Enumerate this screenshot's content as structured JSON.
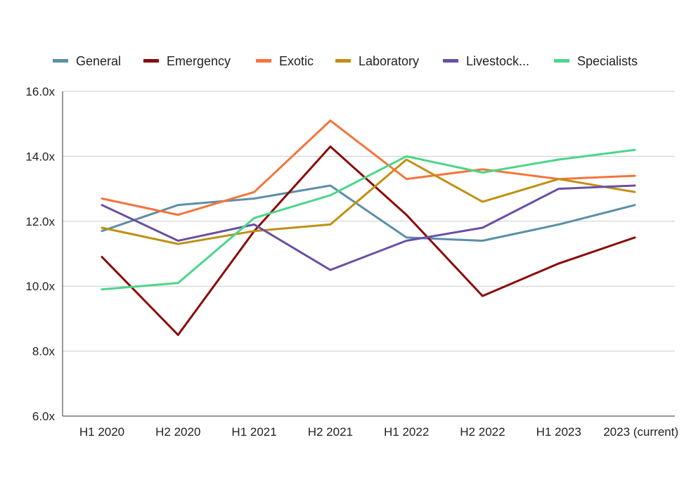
{
  "chart_data": {
    "type": "line",
    "title": "",
    "xlabel": "",
    "ylabel": "",
    "categories": [
      "H1 2020",
      "H2 2020",
      "H1 2021",
      "H2 2021",
      "H1 2022",
      "H2 2022",
      "H1 2023",
      "2023 (current)"
    ],
    "ylim": [
      6.0,
      16.0
    ],
    "yticks": [
      6.0,
      8.0,
      10.0,
      12.0,
      14.0,
      16.0
    ],
    "y_tick_suffix": "x",
    "grid": true,
    "legend_position": "top",
    "series": [
      {
        "name": "General",
        "color": "#5B8FA8",
        "values": [
          11.7,
          12.5,
          12.7,
          13.1,
          11.5,
          11.4,
          11.9,
          12.5
        ]
      },
      {
        "name": "Emergency",
        "color": "#8B0A0A",
        "values": [
          10.9,
          8.5,
          11.7,
          14.3,
          12.2,
          9.7,
          10.7,
          11.5
        ]
      },
      {
        "name": "Exotic",
        "color": "#F4743B",
        "values": [
          12.7,
          12.2,
          12.9,
          15.1,
          13.3,
          13.6,
          13.3,
          13.4
        ]
      },
      {
        "name": "Laboratory",
        "color": "#BF9012",
        "values": [
          11.8,
          11.3,
          11.7,
          11.9,
          13.9,
          12.6,
          13.3,
          12.9
        ]
      },
      {
        "name": "Livestock...",
        "color": "#6A4FA3",
        "values": [
          12.5,
          11.4,
          11.9,
          10.5,
          11.4,
          11.8,
          13.0,
          13.1
        ]
      },
      {
        "name": "Specialists",
        "color": "#4CD58A",
        "values": [
          9.9,
          10.1,
          12.1,
          12.8,
          14.0,
          13.5,
          13.9,
          14.2
        ]
      }
    ]
  }
}
